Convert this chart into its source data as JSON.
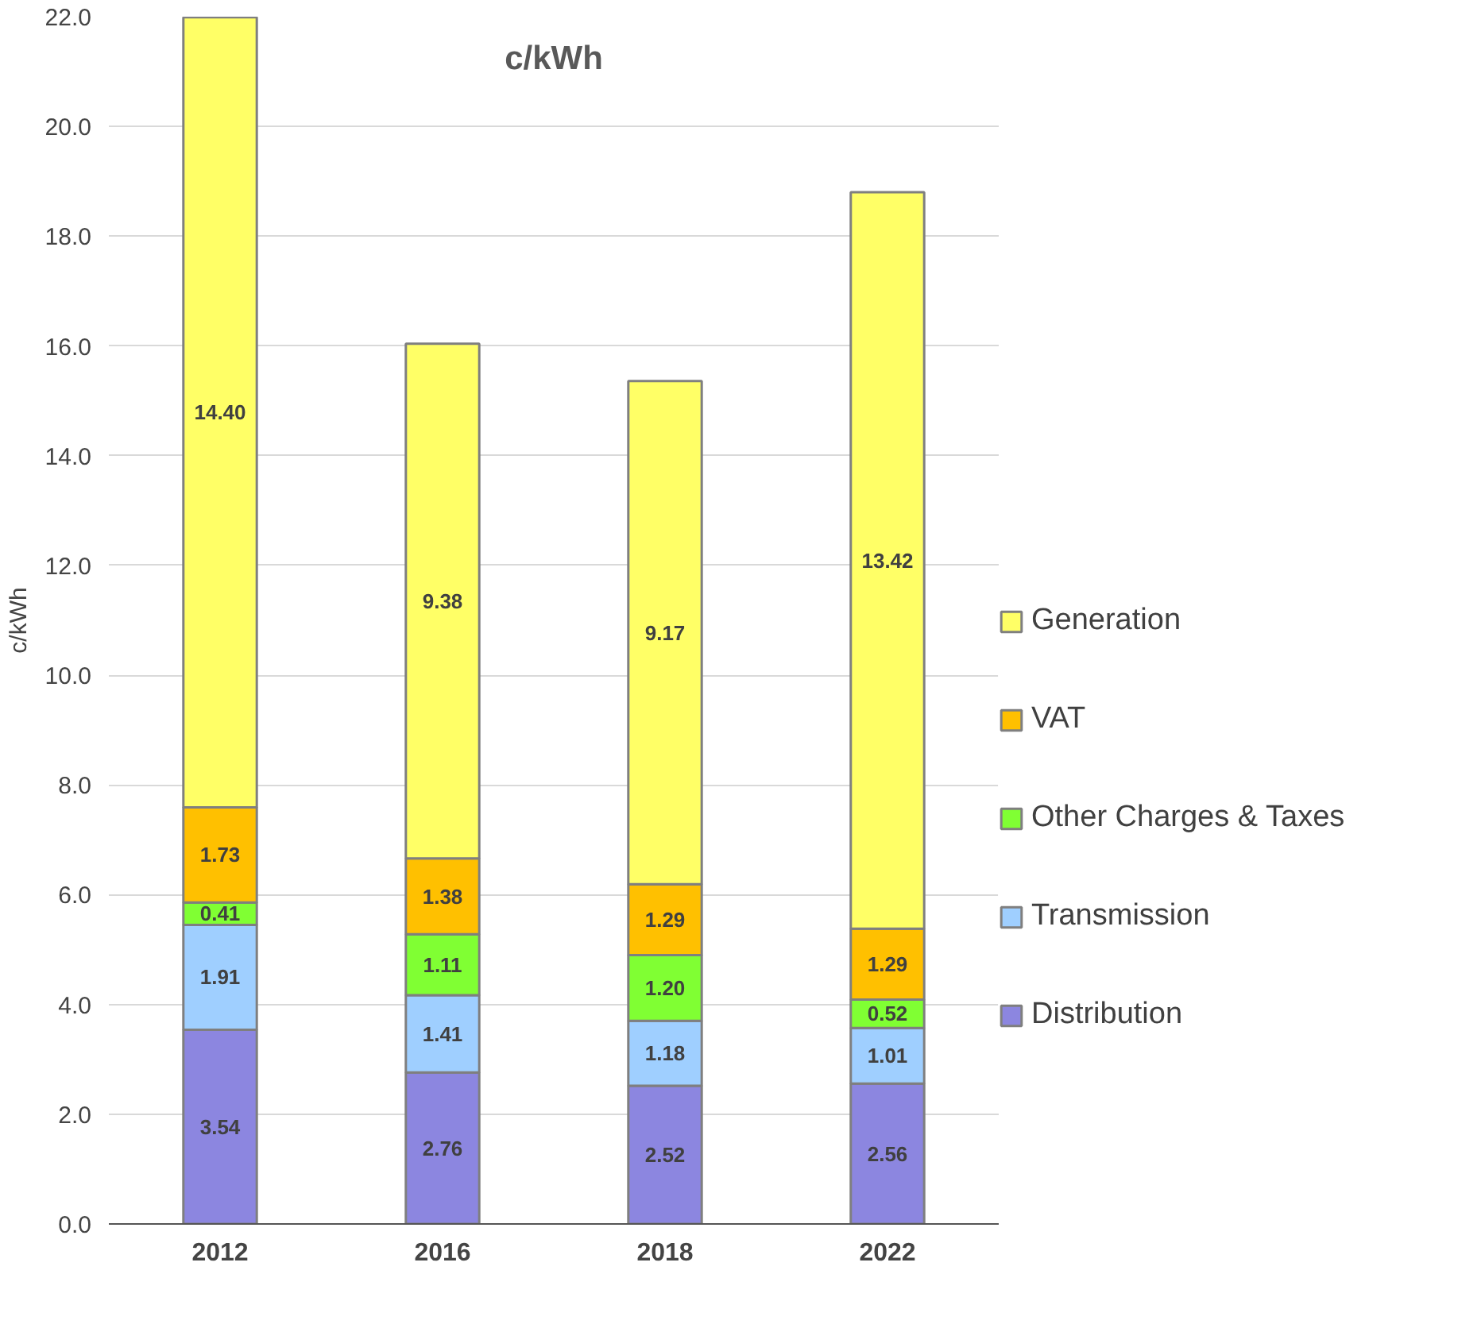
{
  "chart_data": {
    "type": "bar",
    "title": "c/kWh",
    "ylabel": "c/kWh",
    "stacked": true,
    "categories": [
      "2012",
      "2016",
      "2018",
      "2022"
    ],
    "series": [
      {
        "name": "Distribution",
        "color": "#8c86e0",
        "values": [
          3.54,
          2.76,
          2.52,
          2.56
        ],
        "value_labels": [
          "3.54",
          "2.76",
          "2.52",
          "2.56"
        ]
      },
      {
        "name": "Transmission",
        "color": "#9fcfff",
        "values": [
          1.91,
          1.41,
          1.18,
          1.01
        ],
        "value_labels": [
          "1.91",
          "1.41",
          "1.18",
          "1.01"
        ]
      },
      {
        "name": "Other Charges & Taxes",
        "color": "#80ff33",
        "values": [
          0.41,
          1.11,
          1.2,
          0.52
        ],
        "value_labels": [
          "0.41",
          "1.11",
          "1.20",
          "0.52"
        ]
      },
      {
        "name": "VAT",
        "color": "#ffc000",
        "values": [
          1.73,
          1.38,
          1.29,
          1.29
        ],
        "value_labels": [
          "1.73",
          "1.38",
          "1.29",
          "1.29"
        ]
      },
      {
        "name": "Generation",
        "color": "#ffff66",
        "values": [
          14.4,
          9.38,
          9.17,
          13.42
        ],
        "value_labels": [
          "14.40",
          "9.38",
          "9.17",
          "13.42"
        ]
      }
    ],
    "ylim": [
      0,
      22
    ],
    "yticks": [
      {
        "value": 0,
        "label": "0.0"
      },
      {
        "value": 2,
        "label": "2.0"
      },
      {
        "value": 4,
        "label": "4.0"
      },
      {
        "value": 6,
        "label": "6.0"
      },
      {
        "value": 8,
        "label": "8.0"
      },
      {
        "value": 10,
        "label": "10.0"
      },
      {
        "value": 12,
        "label": "12.0"
      },
      {
        "value": 14,
        "label": "14.0"
      },
      {
        "value": 16,
        "label": "16.0"
      },
      {
        "value": 18,
        "label": "18.0"
      },
      {
        "value": 20,
        "label": "20.0"
      },
      {
        "value": 22,
        "label": "22.0"
      }
    ],
    "grid": "y",
    "legend": "right"
  }
}
